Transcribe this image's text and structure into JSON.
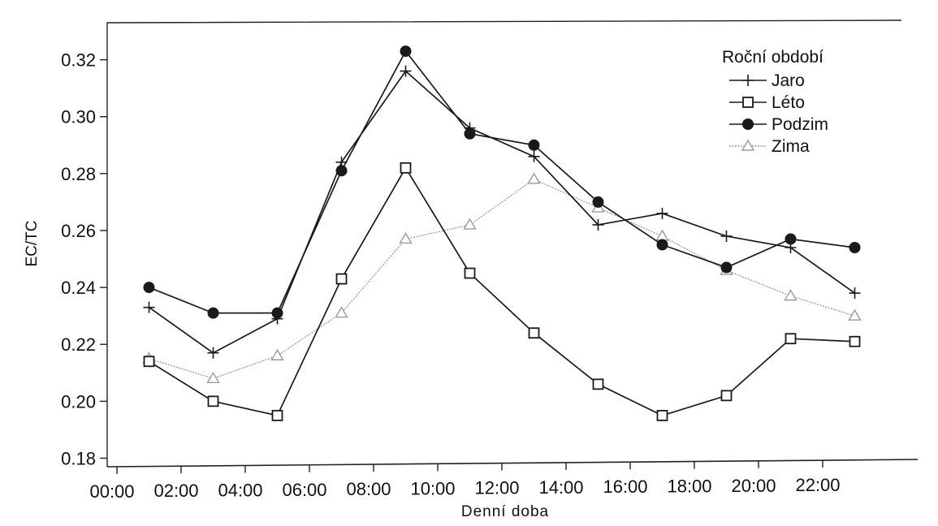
{
  "chart_data": {
    "type": "line",
    "title": "",
    "xlabel": "Denní doba",
    "ylabel": "EC/TC",
    "x_tick_labels": [
      "00:00",
      "02:00",
      "04:00",
      "06:00",
      "08:00",
      "10:00",
      "12:00",
      "14:00",
      "16:00",
      "18:00",
      "20:00",
      "22:00"
    ],
    "x_tick_hours": [
      0,
      2,
      4,
      6,
      8,
      10,
      12,
      14,
      16,
      18,
      20,
      22
    ],
    "xlim": [
      0,
      24
    ],
    "y_tick_labels": [
      "0.18",
      "0.20",
      "0.22",
      "0.24",
      "0.26",
      "0.28",
      "0.30",
      "0.32"
    ],
    "y_ticks": [
      0.18,
      0.2,
      0.22,
      0.24,
      0.26,
      0.28,
      0.3,
      0.32
    ],
    "ylim": [
      0.177,
      0.333
    ],
    "grid": false,
    "legend": {
      "title": "Roční období",
      "placement": "top-right"
    },
    "x_hours": [
      1,
      3,
      5,
      7,
      9,
      11,
      13,
      15,
      17,
      19,
      21,
      23
    ],
    "series": [
      {
        "name": "Jaro",
        "marker": "plus",
        "color": "#1a1a1a",
        "values": [
          0.233,
          0.217,
          0.229,
          0.284,
          0.316,
          0.296,
          0.286,
          0.262,
          0.266,
          0.258,
          0.254,
          0.238
        ]
      },
      {
        "name": "Léto",
        "marker": "square-open",
        "color": "#1a1a1a",
        "values": [
          0.214,
          0.2,
          0.195,
          0.243,
          0.282,
          0.245,
          0.224,
          0.206,
          0.195,
          0.202,
          0.222,
          0.221
        ]
      },
      {
        "name": "Podzim",
        "marker": "circle-filled",
        "color": "#1a1a1a",
        "values": [
          0.24,
          0.231,
          0.231,
          0.281,
          0.323,
          0.294,
          0.29,
          0.27,
          0.255,
          0.247,
          0.257,
          0.254
        ]
      },
      {
        "name": "Zima",
        "marker": "triangle-open",
        "color": "#9a9a9a",
        "values": [
          0.215,
          0.208,
          0.216,
          0.231,
          0.257,
          0.262,
          0.278,
          0.268,
          0.258,
          0.246,
          0.237,
          0.23
        ]
      }
    ]
  }
}
